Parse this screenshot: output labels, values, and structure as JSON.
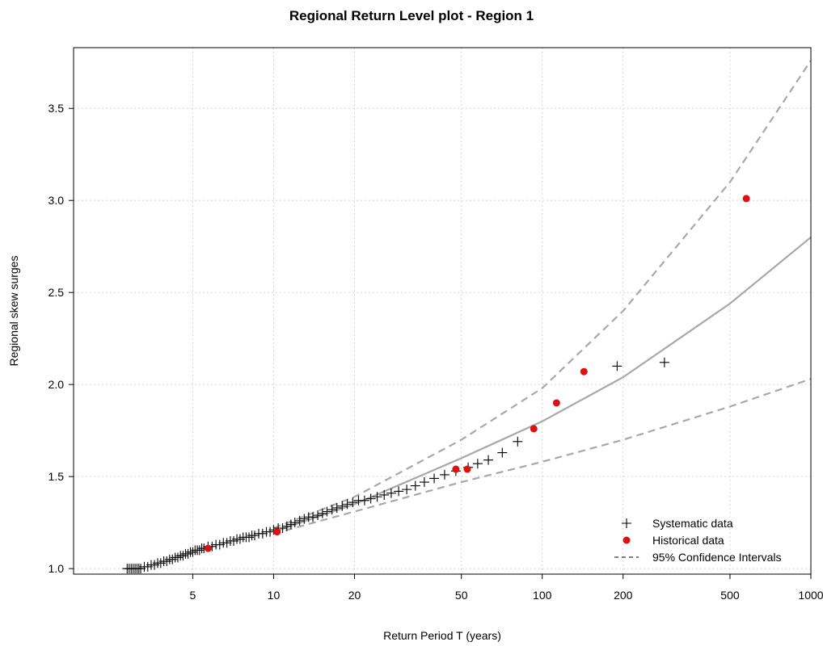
{
  "chart_data": {
    "type": "scatter",
    "title": "Regional Return Level plot - Region 1",
    "xlabel": "Return Period T (years)",
    "ylabel": "Regional skew surges",
    "x_scale": "log",
    "xlim": [
      1.8,
      1000
    ],
    "ylim": [
      0.97,
      3.83
    ],
    "x_ticks": [
      5,
      10,
      20,
      50,
      100,
      200,
      500,
      1000
    ],
    "y_ticks": [
      1.0,
      1.5,
      2.0,
      2.5,
      3.0,
      3.5
    ],
    "y_tick_labels": [
      "1.0",
      "1.5",
      "2.0",
      "2.5",
      "3.0",
      "3.5"
    ],
    "grid": true,
    "legend_position": "bottom-right",
    "legend": [
      {
        "label": "Systematic data",
        "marker": "plus"
      },
      {
        "label": "Historical data",
        "marker": "dot"
      },
      {
        "label": "95% Confidence Intervals",
        "marker": "dashed-line"
      }
    ],
    "series": [
      {
        "name": "Systematic data",
        "kind": "points",
        "marker": "plus",
        "color": "#000000",
        "x": [
          2.85,
          2.9,
          2.95,
          3.0,
          3.05,
          3.1,
          3.15,
          3.2,
          3.3,
          3.4,
          3.5,
          3.6,
          3.7,
          3.8,
          3.9,
          4.0,
          4.1,
          4.2,
          4.3,
          4.4,
          4.5,
          4.6,
          4.7,
          4.8,
          4.9,
          5.0,
          5.1,
          5.2,
          5.3,
          5.4,
          5.5,
          5.7,
          5.9,
          6.1,
          6.3,
          6.5,
          6.7,
          6.9,
          7.1,
          7.3,
          7.5,
          7.7,
          7.9,
          8.1,
          8.3,
          8.5,
          8.8,
          9.1,
          9.4,
          9.7,
          10.0,
          10.4,
          10.8,
          11.2,
          11.6,
          12.0,
          12.5,
          13.0,
          13.5,
          14.0,
          14.6,
          15.2,
          15.8,
          16.5,
          17.2,
          18.0,
          18.8,
          19.7,
          20.7,
          21.8,
          23.0,
          24.3,
          25.8,
          27.4,
          29.2,
          31.3,
          33.7,
          36.4,
          39.6,
          43.3,
          47.7,
          53.0,
          57.5,
          63.0,
          71.0,
          81.0,
          190.0,
          285.0
        ],
        "y": [
          1.0,
          1.0,
          1.0,
          1.0,
          1.0,
          1.0,
          1.0,
          1.0,
          1.01,
          1.01,
          1.02,
          1.02,
          1.03,
          1.03,
          1.04,
          1.04,
          1.05,
          1.05,
          1.06,
          1.06,
          1.07,
          1.07,
          1.08,
          1.08,
          1.09,
          1.09,
          1.1,
          1.1,
          1.1,
          1.11,
          1.11,
          1.12,
          1.12,
          1.13,
          1.13,
          1.14,
          1.14,
          1.15,
          1.15,
          1.16,
          1.16,
          1.17,
          1.17,
          1.17,
          1.18,
          1.18,
          1.19,
          1.19,
          1.2,
          1.2,
          1.21,
          1.22,
          1.22,
          1.23,
          1.24,
          1.25,
          1.26,
          1.27,
          1.28,
          1.28,
          1.29,
          1.3,
          1.31,
          1.32,
          1.33,
          1.34,
          1.35,
          1.36,
          1.37,
          1.37,
          1.38,
          1.39,
          1.4,
          1.41,
          1.42,
          1.43,
          1.45,
          1.47,
          1.49,
          1.51,
          1.53,
          1.55,
          1.57,
          1.59,
          1.63,
          1.69,
          2.1,
          2.12
        ]
      },
      {
        "name": "Historical data",
        "kind": "points",
        "marker": "dot",
        "color": "#dd1111",
        "x": [
          5.7,
          10.3,
          47.7,
          52.6,
          93.0,
          113.0,
          143.0,
          575.0
        ],
        "y": [
          1.11,
          1.2,
          1.54,
          1.54,
          1.76,
          1.9,
          2.07,
          3.01
        ]
      },
      {
        "name": "Fitted return level",
        "kind": "line",
        "style": "solid",
        "color": "#a8a8a8",
        "x": [
          10,
          20,
          50,
          100,
          200,
          500,
          1000
        ],
        "y": [
          1.2,
          1.35,
          1.6,
          1.8,
          2.04,
          2.44,
          2.8
        ]
      },
      {
        "name": "95% Confidence Intervals (upper)",
        "kind": "line",
        "style": "dashed",
        "color": "#a8a8a8",
        "x": [
          10,
          20,
          50,
          100,
          200,
          500,
          1000
        ],
        "y": [
          1.22,
          1.39,
          1.7,
          1.98,
          2.4,
          3.1,
          3.76
        ]
      },
      {
        "name": "95% Confidence Intervals (lower)",
        "kind": "line",
        "style": "dashed",
        "color": "#a8a8a8",
        "x": [
          10,
          20,
          50,
          100,
          200,
          500,
          1000
        ],
        "y": [
          1.19,
          1.31,
          1.47,
          1.58,
          1.7,
          1.88,
          2.03
        ]
      }
    ]
  }
}
